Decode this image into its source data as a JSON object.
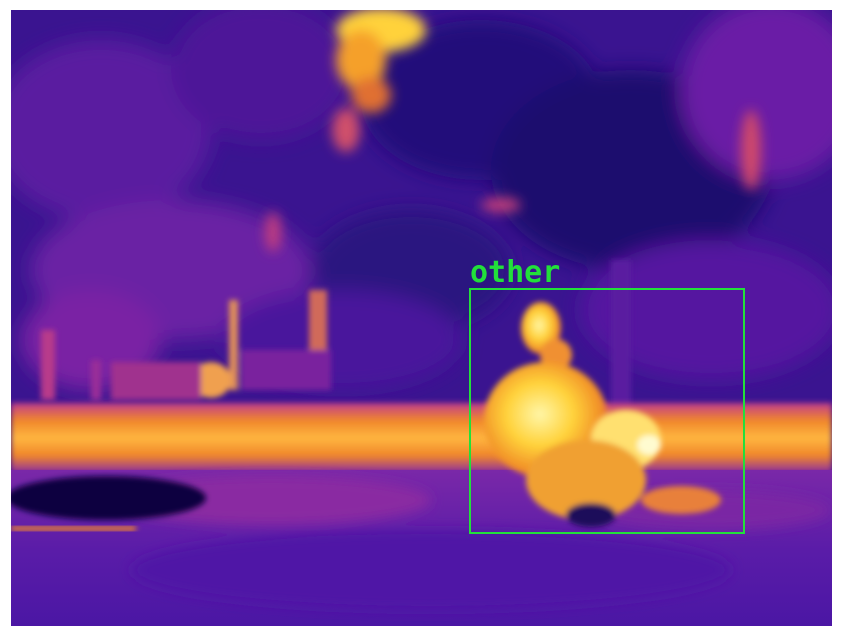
{
  "image": {
    "description_type": "thermal-camera-frame",
    "palette": "ironbow",
    "colors": {
      "cold": "#1a0a6e",
      "cool": "#5a1aa0",
      "mid": "#b8309a",
      "warm": "#f07a20",
      "hot": "#ffd23a",
      "hottest": "#fff6a8",
      "annotation": "#22e03a"
    }
  },
  "detections": [
    {
      "label": "other"
    }
  ]
}
